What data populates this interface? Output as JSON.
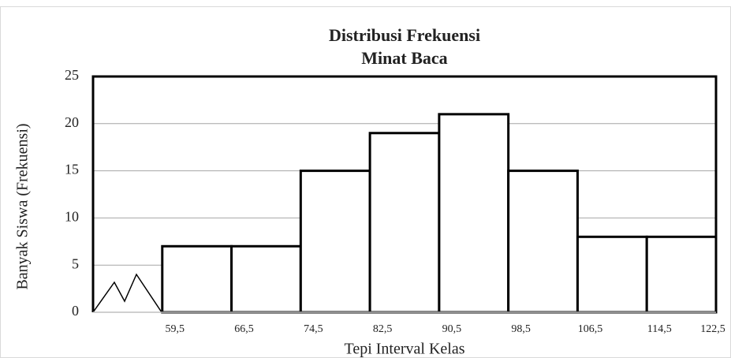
{
  "chart_data": {
    "type": "histogram",
    "title": [
      "Distribusi Frekuensi",
      "Minat Baca"
    ],
    "x_label": "Tepi Interval Kelas",
    "y_label": "Banyak Siswa (Frekuensi)",
    "bins": [
      {
        "value": 59.5,
        "label": "59,5"
      },
      {
        "value": 66.5,
        "label": "66,5"
      },
      {
        "value": 74.5,
        "label": "74,5"
      },
      {
        "value": 82.5,
        "label": "82,5"
      },
      {
        "value": 90.5,
        "label": "90,5"
      },
      {
        "value": 98.5,
        "label": "98,5"
      },
      {
        "value": 106.5,
        "label": "106,5"
      },
      {
        "value": 114.5,
        "label": "114,5"
      },
      {
        "value": 122.5,
        "label": "122,5"
      }
    ],
    "values": [
      7,
      7,
      15,
      19,
      21,
      15,
      8,
      8
    ],
    "color": "#ffffff",
    "ylim": [
      0,
      25
    ],
    "yticks": [
      0,
      5,
      10,
      15,
      20,
      25
    ],
    "grid": true
  }
}
